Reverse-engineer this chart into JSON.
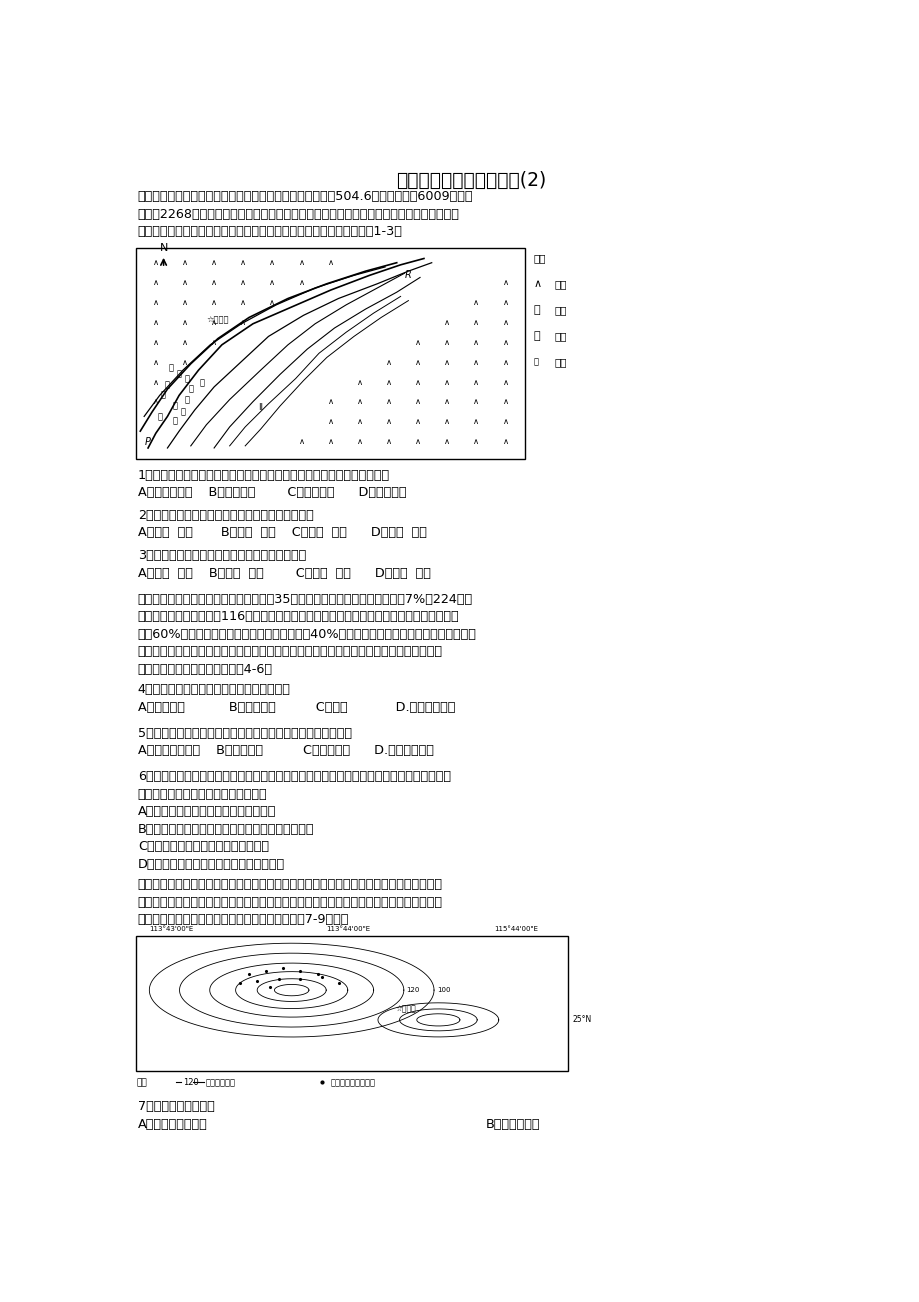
{
  "title": "高二下期期末复习地理卷(2)",
  "intro_lines": [
    "青藏高原南侧的雅鲁藏布大峡谷是地球上最深的峡谷，全长504.6千米，最深处6009米，平",
    "均深度2268米。受沿途岩性（软硬程度）的影响，宽谷与峡谷相间分布，下图所示为雅鲁藏",
    "布江某段（自西南流向东北）河谷及周边地貌图。阅读图文材料，完成1-3题"
  ],
  "q1": "1．雅鲁藏布江大峡谷能成为世界上最深的峡谷且还在加深的原因最主要是",
  "q1a": "A．河流流量大    B．地壳抬升        C．土质疏松      D．板块张裂",
  "q2": "2．图中宽谷形成所对应的岩性及所受的外力作用是",
  "q2a": "A．坚硬  下蚀       B．坚硬  侧蚀    C．松软  下蚀      D．松软  侧蚀",
  "q3": "3．宽谷中沙洲及南岸沙丘增长最快的季节分别是",
  "q3a": "A．夏季  冬季    B．夏季  春季        C．冬季  冬季      D．春季  夏季",
  "para2_lines": [
    "美国马里兰大学的研究人员发现，在过去35年间，全球的林木树冠覆盖增加了7%或224万平",
    "方公里，裸地覆盖减少了116万平方公里，这些变化主要集中在山区、温带以及亚热带地区。",
    "其中60%的土地变化都与人类直接活动有关，而40%是由气候变化等间接驱动因素造成的。但",
    "不少专家坦言，全球森林面积增加未必是好事，因为这表明受农业扩张驱动的森林砍伐会在",
    "热带地区越来越突出。据此完成4-6题"
  ],
  "q4": "4．会导致森林覆盖率增加的农业活动不包括",
  "q4a": "A．退耕还林           B．围栏放牧          C．弃耕            D.调整农业结构",
  "q5": "5．下列地区中，森林覆盖率上升受气候变化因素影响最小的是",
  "q5a": "A．半干旱气候区    B．高纬地区          C．高山地区      D.亚热带季风区",
  "q6": "6．对「全球森林面积增加未必是好事，因为这表明受农业扩张驱动的森林砍伐会在热带地区",
  "q6b": "越来越突出。」这一句话的正确理解是",
  "q6a": [
    "A．热带雨林的生态效益远优于其他森林",
    "B．被砍伐的热带森林面积将大于其他新增林地面积",
    "C．热带地区毁林开荒的经济效益低下",
    "D．其他地区森林的经济价值不及热带雨林"
  ],
  "para3_lines": [
    "丹霞山地处南岭山脉中段南麓，丹霞梧桐是多年生小乔木，属国家珍稀濒危保护植物，每年",
    "夏初开紫花，秋季叶子变黄。某科考小组调查发现，丹霞梧桐在该地主要分布崖壁上。下图",
    "为该小组调查区域内丹霞梧桐分布情况，据此完成7-9小题。"
  ],
  "q7": "7．当地的优势植被是",
  "q7a_A": "A．温带落叶阔叶林",
  "q7a_B": "B．热带季雨林",
  "bg_color": "#ffffff",
  "lm": 0.032,
  "body_fs": 9.2,
  "title_fs": 13.5,
  "lh": 0.0175
}
